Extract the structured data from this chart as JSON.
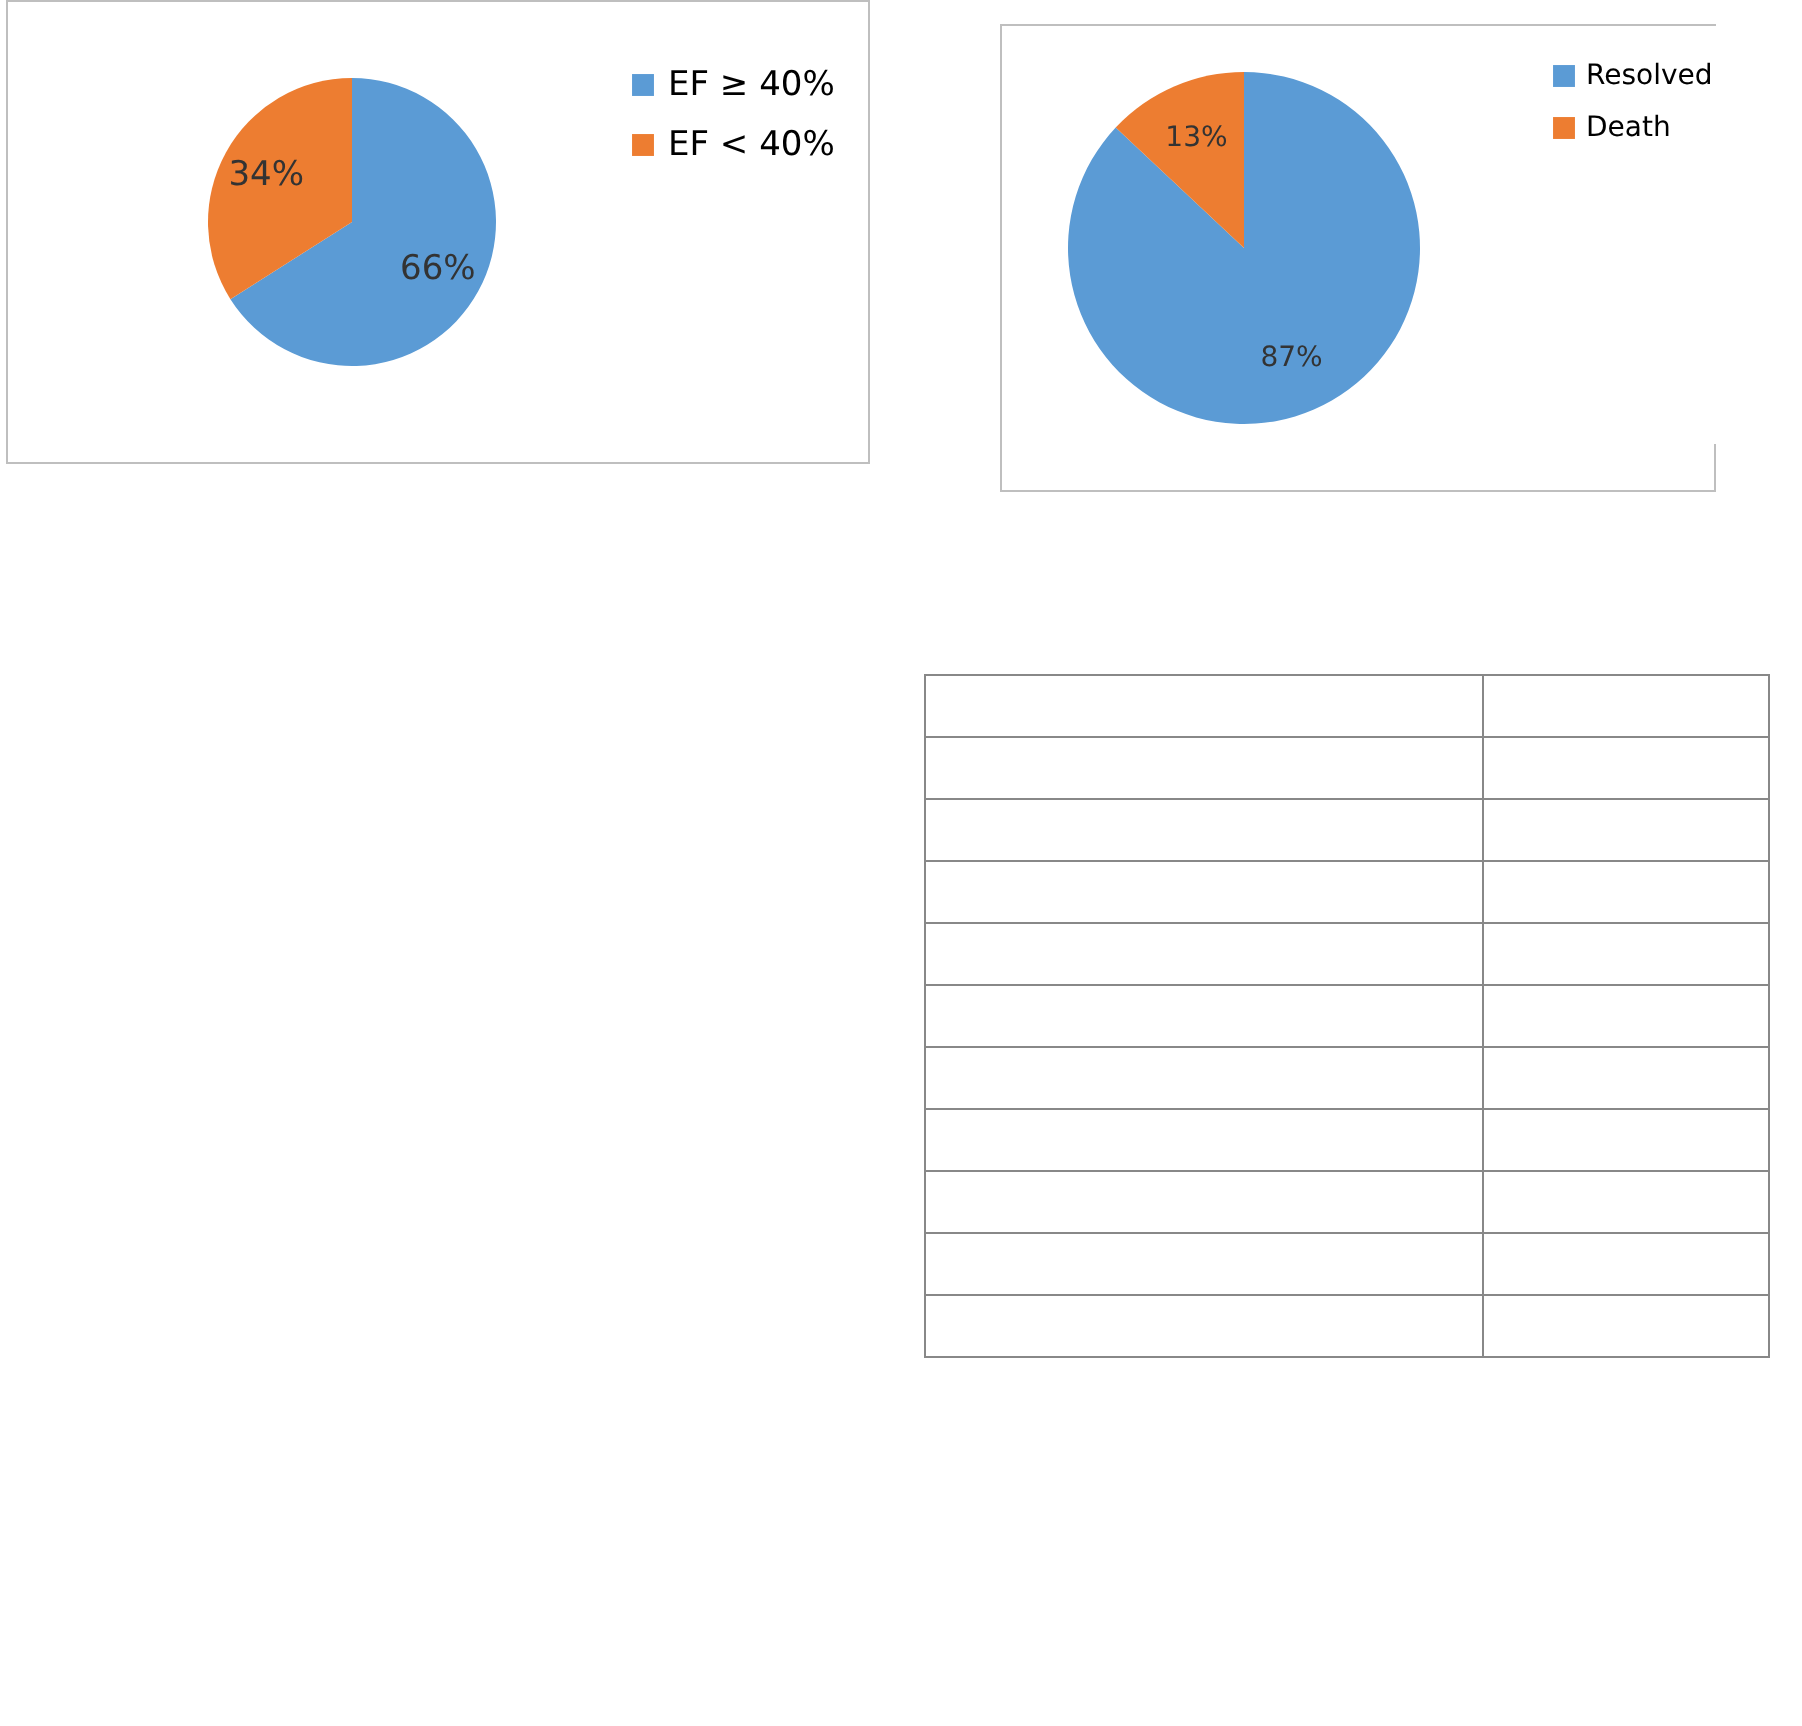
{
  "chart_data": [
    {
      "type": "pie",
      "categories": [
        "EF ≥ 40%",
        "EF < 40%"
      ],
      "values": [
        66,
        34
      ],
      "colors": [
        "#5b9bd5",
        "#ed7d31"
      ],
      "value_labels": [
        "66%",
        "34%"
      ],
      "legend": "right"
    },
    {
      "type": "pie",
      "categories": [
        "Resolved",
        "Death"
      ],
      "values": [
        87,
        13
      ],
      "colors": [
        "#5b9bd5",
        "#ed7d31"
      ],
      "value_labels": [
        "87%",
        "13%"
      ],
      "legend": "right"
    }
  ]
}
